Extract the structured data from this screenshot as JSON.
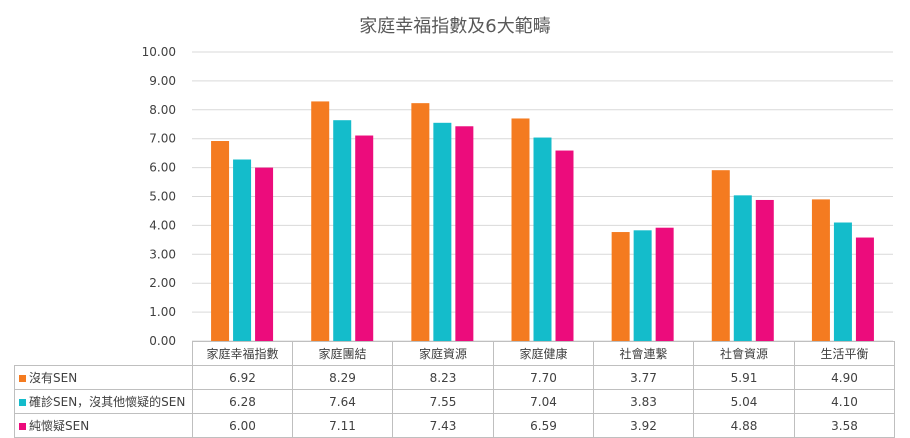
{
  "chart_data": {
    "type": "bar",
    "title": "家庭幸福指數及6大範疇",
    "categories": [
      "家庭幸福指數",
      "家庭團結",
      "家庭資源",
      "家庭健康",
      "社會連繫",
      "社會資源",
      "生活平衡"
    ],
    "series": [
      {
        "name": "沒有SEN",
        "color": "#F47B20",
        "values": [
          6.92,
          8.29,
          8.23,
          7.7,
          3.77,
          5.91,
          4.9
        ],
        "display": [
          "6.92",
          "8.29",
          "8.23",
          "7.70",
          "3.77",
          "5.91",
          "4.90"
        ]
      },
      {
        "name": "確診SEN，沒其他懷疑的SEN",
        "color": "#14BCCB",
        "values": [
          6.28,
          7.64,
          7.55,
          7.04,
          3.83,
          5.04,
          4.1
        ],
        "display": [
          "6.28",
          "7.64",
          "7.55",
          "7.04",
          "3.83",
          "5.04",
          "4.10"
        ]
      },
      {
        "name": "純懷疑SEN",
        "color": "#EC0C7C",
        "values": [
          6.0,
          7.11,
          7.43,
          6.59,
          3.92,
          4.88,
          3.58
        ],
        "display": [
          "6.00",
          "7.11",
          "7.43",
          "6.59",
          "3.92",
          "4.88",
          "3.58"
        ]
      }
    ],
    "ylim": [
      0,
      10
    ],
    "yticks": [
      "0.00",
      "1.00",
      "2.00",
      "3.00",
      "4.00",
      "5.00",
      "6.00",
      "7.00",
      "8.00",
      "9.00",
      "10.00"
    ],
    "grid": true,
    "legend": "data-table"
  }
}
